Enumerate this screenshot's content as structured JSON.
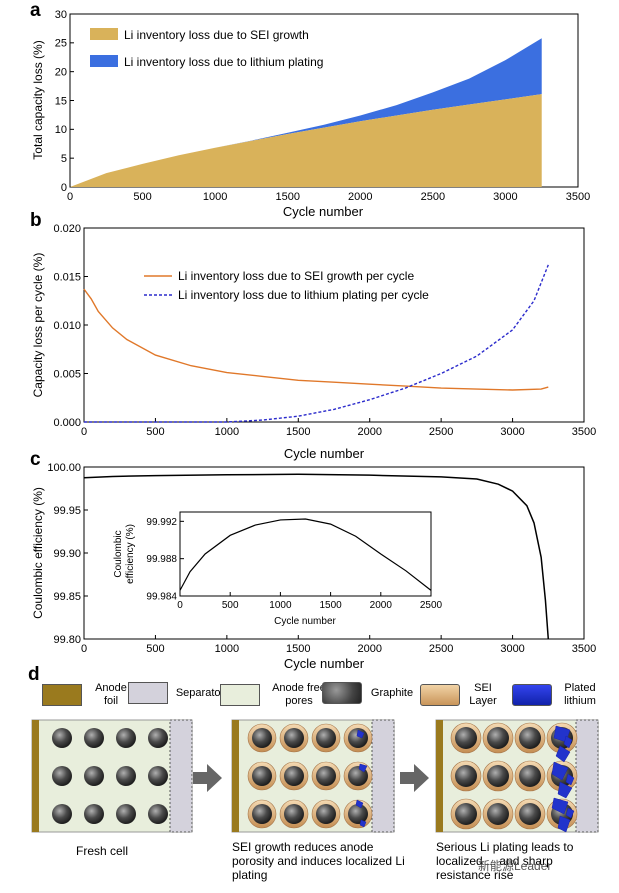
{
  "panels": {
    "a": {
      "letter": "a",
      "ylabel": "Total capacity loss (%)",
      "xlabel": "Cycle number",
      "legend": [
        "Li inventory loss due to SEI growth",
        "Li inventory loss due to lithium plating"
      ]
    },
    "b": {
      "letter": "b",
      "ylabel": "Capacity loss per cycle (%)",
      "xlabel": "Cycle number",
      "legend": [
        "Li inventory loss due to SEI growth per cycle",
        "Li inventory loss due to lithium plating per cycle"
      ]
    },
    "c": {
      "letter": "c",
      "ylabel": "Coulombic efficiency (%)",
      "xlabel": "Cycle number",
      "inset_ylabel": "Coulombic efficiency (%)",
      "inset_xlabel": "Cycle number"
    },
    "d": {
      "letter": "d",
      "legend": [
        {
          "label": "Anode foil",
          "color": "#9a7a1e"
        },
        {
          "label": "Separator",
          "color": "#d4d2dc"
        },
        {
          "label": "Anode free pores",
          "color": "#e8eedc"
        },
        {
          "label": "Graphite",
          "color": "#555555"
        },
        {
          "label": "SEI Layer",
          "color": "#e2b98a"
        },
        {
          "label": "Plated lithium",
          "color": "#2233cc"
        }
      ],
      "captions": [
        "Fresh cell",
        "SEI growth reduces anode porosity and induces localized Li plating",
        "Serious Li plating leads to localized ... and sharp resistance rise"
      ],
      "watermark": "新能源Leader"
    }
  },
  "chart_data": [
    {
      "panel": "a",
      "type": "area",
      "stacked": true,
      "xlabel": "Cycle number",
      "ylabel": "Total capacity loss (%)",
      "xlim": [
        0,
        3500
      ],
      "ylim": [
        0,
        30
      ],
      "xticks": [
        0,
        500,
        1000,
        1500,
        2000,
        2500,
        3000,
        3500
      ],
      "yticks": [
        0,
        5,
        10,
        15,
        20,
        25,
        30
      ],
      "x": [
        0,
        250,
        500,
        750,
        1000,
        1250,
        1500,
        1750,
        2000,
        2250,
        2500,
        2750,
        3000,
        3250
      ],
      "series": [
        {
          "name": "Li inventory loss due to SEI growth",
          "color": "#d9b25a",
          "values": [
            0,
            2.4,
            4.0,
            5.5,
            6.8,
            8.0,
            9.2,
            10.3,
            11.4,
            12.4,
            13.4,
            14.3,
            15.2,
            16.1
          ]
        },
        {
          "name": "Li inventory loss due to lithium plating",
          "color": "#3b6fe0",
          "values": [
            0,
            0,
            0,
            0,
            0,
            0.05,
            0.2,
            0.5,
            1.0,
            1.8,
            3.0,
            4.5,
            6.8,
            9.7
          ]
        }
      ],
      "legend_position": "top-left"
    },
    {
      "panel": "b",
      "type": "line",
      "xlabel": "Cycle number",
      "ylabel": "Capacity loss per cycle (%)",
      "xlim": [
        0,
        3500
      ],
      "ylim": [
        0,
        0.02
      ],
      "xticks": [
        0,
        500,
        1000,
        1500,
        2000,
        2500,
        3000,
        3500
      ],
      "yticks": [
        "0.000",
        "0.005",
        "0.010",
        "0.015",
        "0.020"
      ],
      "series": [
        {
          "name": "Li inventory loss due to SEI growth per cycle",
          "color": "#e0782a",
          "dash": false,
          "x": [
            0,
            50,
            100,
            200,
            300,
            500,
            750,
            1000,
            1250,
            1500,
            1750,
            2000,
            2250,
            2500,
            2750,
            3000,
            3200,
            3250
          ],
          "values": [
            0.0137,
            0.0127,
            0.0114,
            0.0097,
            0.0085,
            0.0069,
            0.0058,
            0.0051,
            0.0047,
            0.0043,
            0.0041,
            0.0039,
            0.0037,
            0.0035,
            0.0034,
            0.0033,
            0.0034,
            0.0036
          ]
        },
        {
          "name": "Li inventory loss due to lithium plating per cycle",
          "color": "#2b2bcc",
          "dash": true,
          "x": [
            0,
            1000,
            1250,
            1500,
            1750,
            2000,
            2250,
            2500,
            2750,
            3000,
            3150,
            3250
          ],
          "values": [
            0,
            0,
            0.0002,
            0.0006,
            0.0013,
            0.0023,
            0.0035,
            0.005,
            0.0068,
            0.0095,
            0.0125,
            0.0162
          ]
        }
      ],
      "legend_position": "top-center"
    },
    {
      "panel": "c",
      "type": "line",
      "xlabel": "Cycle number",
      "ylabel": "Coulombic efficiency (%)",
      "xlim": [
        0,
        3500
      ],
      "ylim": [
        99.8,
        100.0
      ],
      "xticks": [
        0,
        500,
        1000,
        1500,
        2000,
        2500,
        3000,
        3500
      ],
      "yticks": [
        "99.80",
        "99.85",
        "99.90",
        "99.95",
        "100.00"
      ],
      "series": [
        {
          "color": "#000000",
          "x": [
            0,
            200,
            500,
            1000,
            1500,
            2000,
            2500,
            2750,
            2900,
            3000,
            3100,
            3150,
            3200,
            3230,
            3250
          ],
          "values": [
            99.9875,
            99.989,
            99.99,
            99.991,
            99.9915,
            99.9905,
            99.9885,
            99.986,
            99.98,
            99.972,
            99.955,
            99.935,
            99.895,
            99.845,
            99.8
          ]
        }
      ],
      "inset": {
        "xlabel": "Cycle number",
        "ylabel": "Coulombic efficiency (%)",
        "xlim": [
          0,
          2500
        ],
        "ylim": [
          99.984,
          99.993
        ],
        "xticks": [
          0,
          500,
          1000,
          1500,
          2000,
          2500
        ],
        "yticks": [
          "99.984",
          "99.988",
          "99.992"
        ],
        "x": [
          0,
          100,
          250,
          500,
          750,
          1000,
          1250,
          1500,
          1750,
          2000,
          2250,
          2500
        ],
        "values": [
          99.9846,
          99.9866,
          99.9885,
          99.9905,
          99.9916,
          99.99215,
          99.99225,
          99.9917,
          99.9904,
          99.9885,
          99.9867,
          99.9846
        ]
      }
    }
  ]
}
